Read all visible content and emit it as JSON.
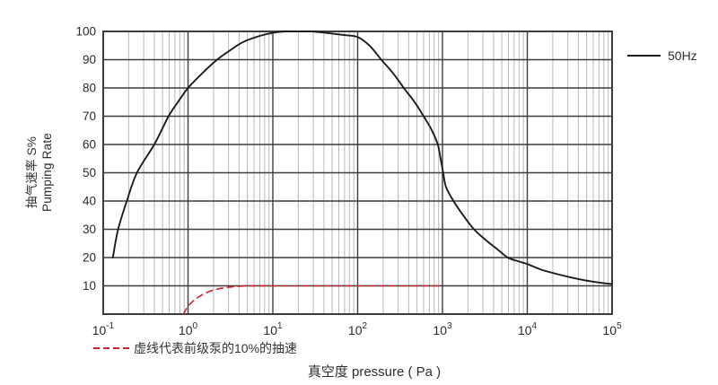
{
  "colors": {
    "curve": "#1c1c1c",
    "dashed_curve": "#c9252b",
    "grid_major": "#3c3c3c",
    "grid_minor": "#b9b9b9",
    "text": "#2a2a2a"
  },
  "legend": {
    "label": "50Hz"
  },
  "footnote": {
    "text": "虚线代表前级泵的10%的抽速"
  },
  "axes": {
    "x_title": "真空度 pressure ( Pa )",
    "y_title_line1": "抽气速率 S%",
    "y_title_line2": "Pumping Rate"
  },
  "chart_data": {
    "type": "line",
    "x_scale": "log",
    "x_range": [
      0.1,
      100000
    ],
    "y_range": [
      0,
      100
    ],
    "x_tick_exponents": [
      -1,
      0,
      1,
      2,
      3,
      4,
      5
    ],
    "y_ticks": [
      10,
      20,
      30,
      40,
      50,
      60,
      70,
      80,
      90,
      100
    ],
    "xlabel": "真空度 pressure ( Pa )",
    "ylabel": "抽气速率 S% Pumping Rate",
    "grid": "major horizontal every 10; log decade verticals with light minor log lines",
    "legend_position": "top-right outside plot",
    "series": [
      {
        "name": "50Hz",
        "style": "solid",
        "color": "#1c1c1c",
        "points": [
          [
            0.13,
            20
          ],
          [
            0.15,
            30
          ],
          [
            0.19,
            40
          ],
          [
            0.25,
            50
          ],
          [
            0.4,
            60
          ],
          [
            0.59,
            70
          ],
          [
            0.78,
            75.5
          ],
          [
            1.0,
            80
          ],
          [
            1.45,
            85
          ],
          [
            2.2,
            90
          ],
          [
            3.2,
            93.5
          ],
          [
            4.5,
            96.3
          ],
          [
            7,
            98.4
          ],
          [
            10,
            99.5
          ],
          [
            14,
            100
          ],
          [
            28,
            100
          ],
          [
            45,
            99.4
          ],
          [
            70,
            98.7
          ],
          [
            100,
            98
          ],
          [
            140,
            94.8
          ],
          [
            190,
            90
          ],
          [
            265,
            85
          ],
          [
            350,
            80
          ],
          [
            470,
            75
          ],
          [
            600,
            70
          ],
          [
            750,
            65
          ],
          [
            880,
            60
          ],
          [
            950,
            55
          ],
          [
            1020,
            50
          ],
          [
            1100,
            45
          ],
          [
            1350,
            40
          ],
          [
            1700,
            35.5
          ],
          [
            2350,
            30
          ],
          [
            3300,
            26
          ],
          [
            4500,
            22.8
          ],
          [
            5900,
            20
          ],
          [
            8000,
            18.6
          ],
          [
            10000,
            17.7
          ],
          [
            15000,
            15.6
          ],
          [
            25000,
            13.8
          ],
          [
            40000,
            12.4
          ],
          [
            65000,
            11.3
          ],
          [
            100000,
            10.6
          ]
        ]
      },
      {
        "name": "前级泵的10%的抽速 (虚线)",
        "style": "dashed",
        "color": "#c9252b",
        "points": [
          [
            0.88,
            0
          ],
          [
            1.0,
            2.8
          ],
          [
            1.15,
            4.6
          ],
          [
            1.35,
            6.2
          ],
          [
            1.65,
            7.6
          ],
          [
            2.1,
            8.7
          ],
          [
            2.8,
            9.4
          ],
          [
            3.8,
            9.8
          ],
          [
            5.5,
            10
          ],
          [
            10,
            10
          ],
          [
            30,
            10
          ],
          [
            100,
            10
          ],
          [
            300,
            10
          ],
          [
            1000,
            10
          ]
        ]
      }
    ]
  }
}
